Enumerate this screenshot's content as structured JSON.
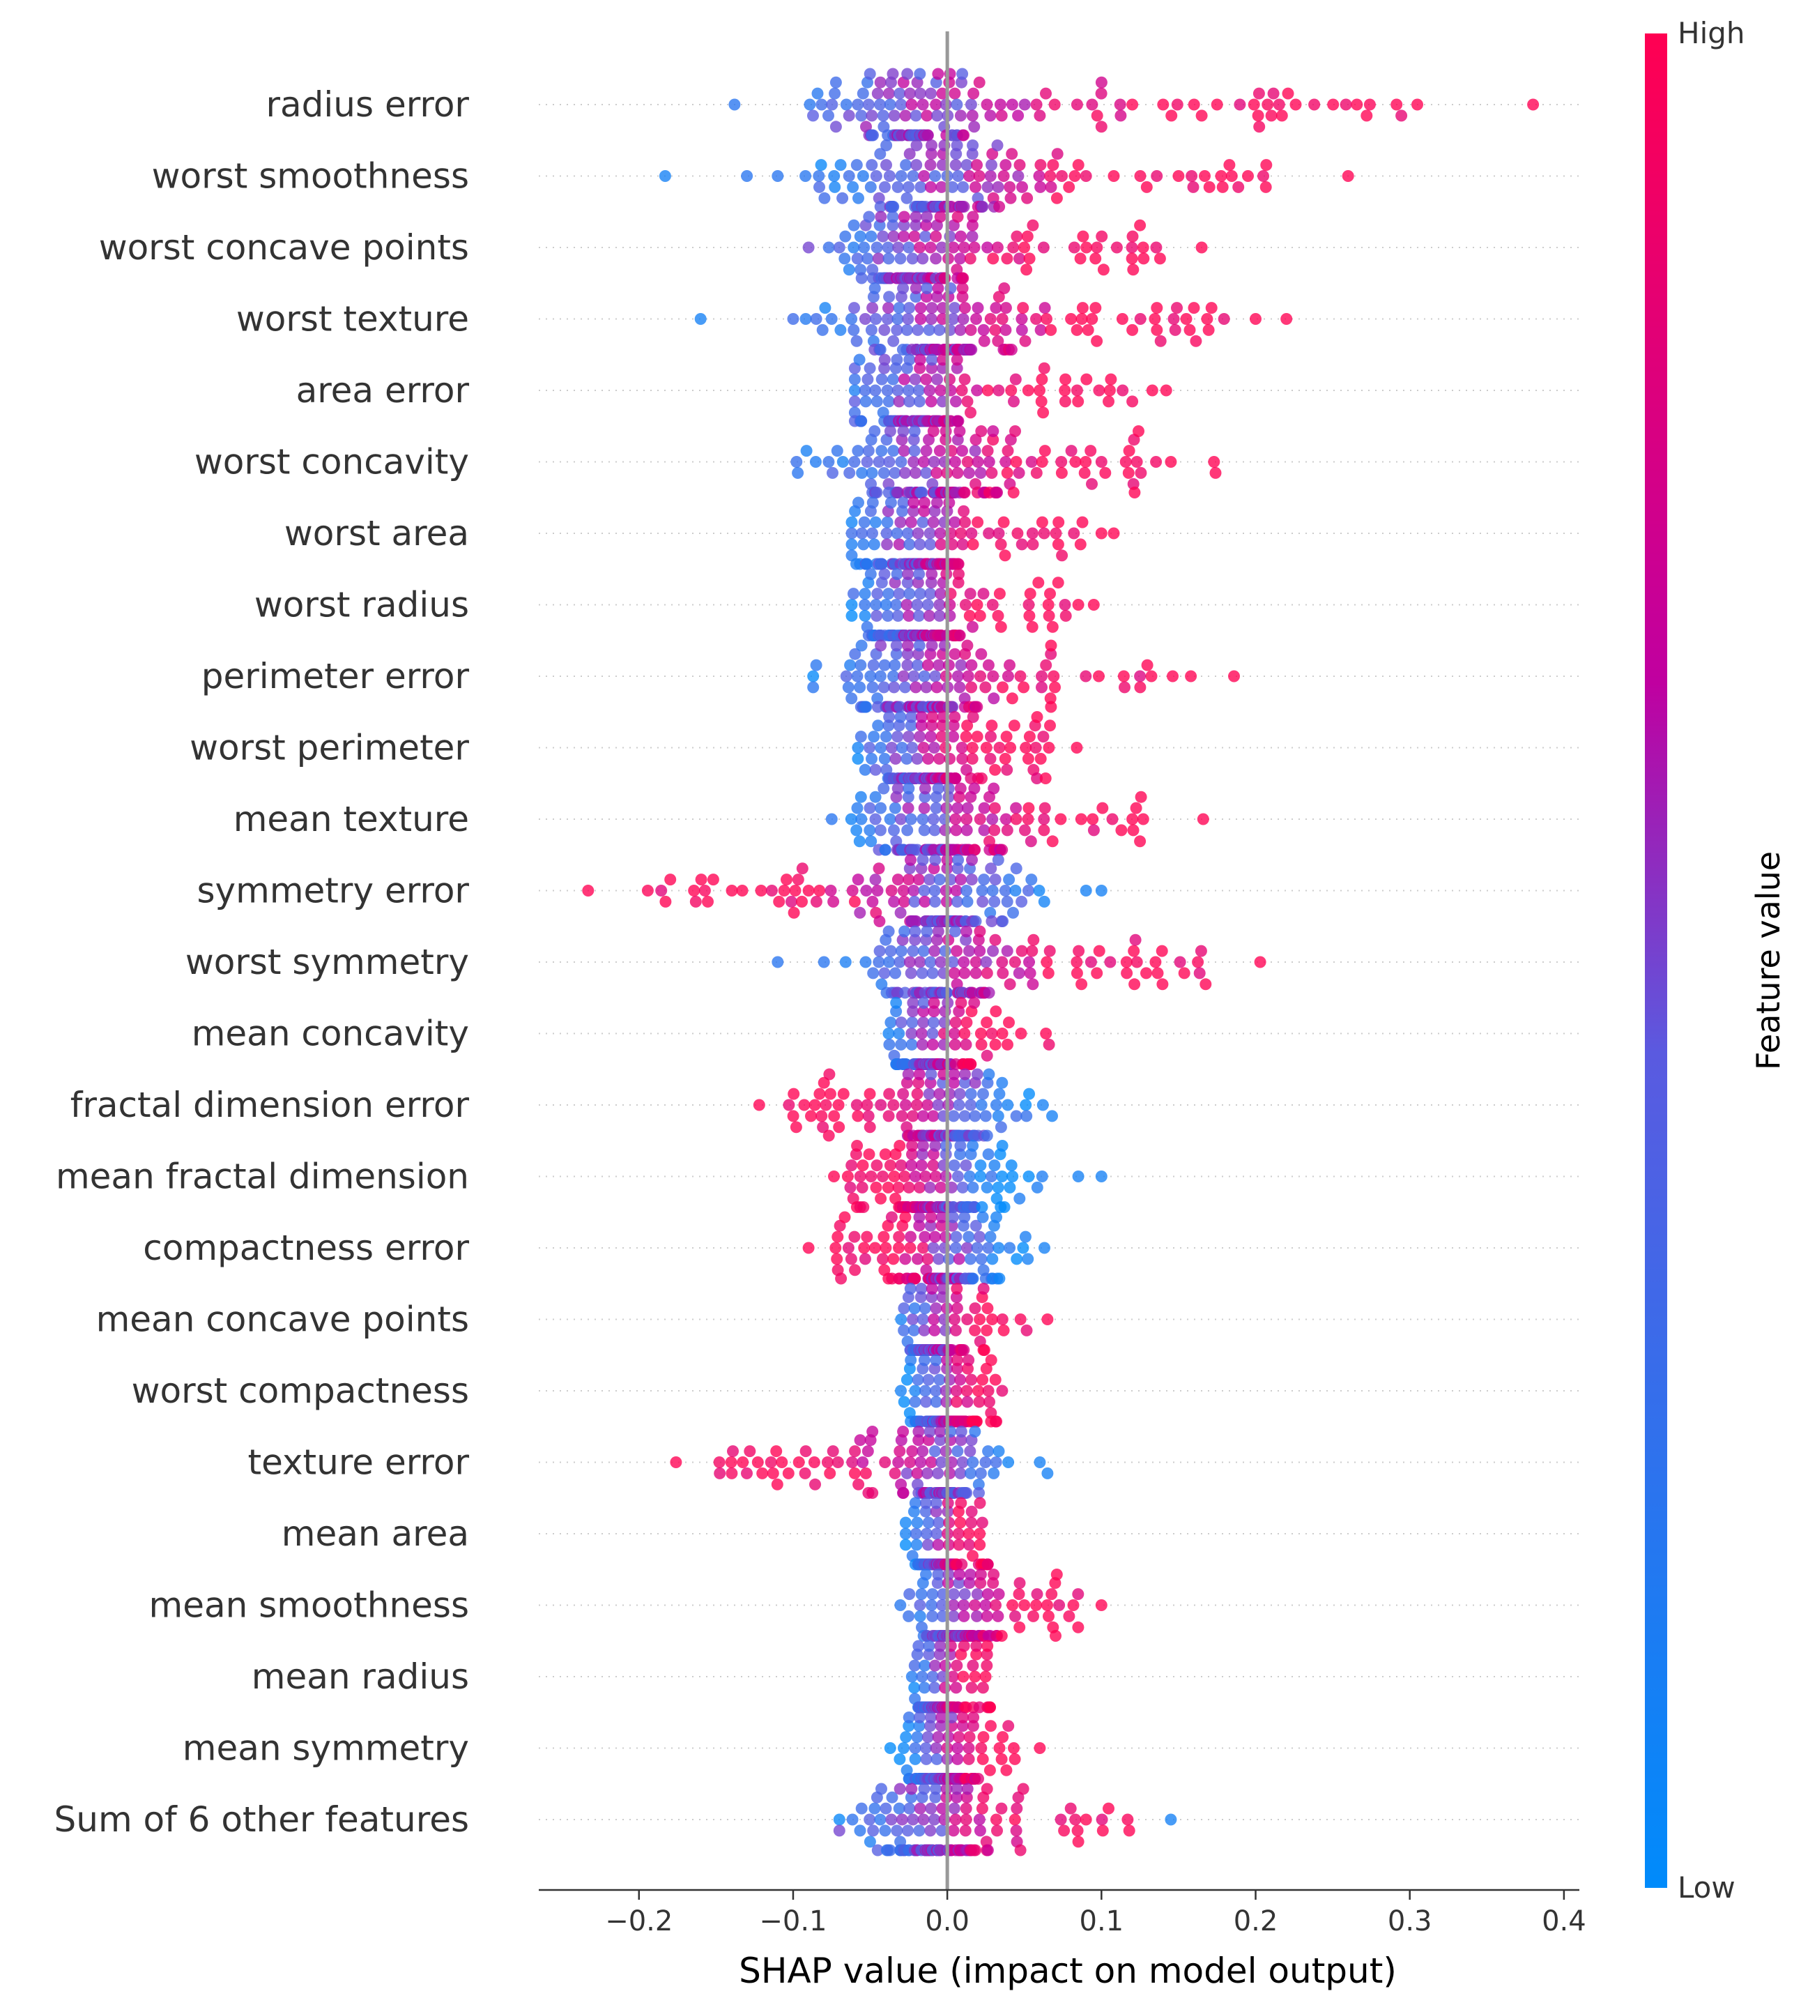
{
  "chart_data": {
    "type": "scatter",
    "subtype": "shap-beeswarm",
    "title": "",
    "xlabel": "SHAP value (impact on model output)",
    "ylabel": "",
    "xlim": [
      -0.265,
      0.41
    ],
    "xticks": [
      -0.2,
      -0.1,
      0.0,
      0.1,
      0.2,
      0.3,
      0.4
    ],
    "xtick_labels": [
      "−0.2",
      "−0.1",
      "0.0",
      "0.1",
      "0.2",
      "0.3",
      "0.4"
    ],
    "zero_line": 0.0,
    "colorbar": {
      "label": "Feature value",
      "high_label": "High",
      "low_label": "Low",
      "high_color": "#ff0052",
      "mid_color": "#c000a0",
      "low_color": "#008bfb"
    },
    "features": [
      {
        "name": "radius error",
        "min": -0.14,
        "max": 0.38,
        "center": -0.025,
        "spread": 0.028,
        "dir": 1,
        "n": 150,
        "outliers": [
          [
            -0.138,
            0.2
          ],
          [
            0.06,
            0.8
          ],
          [
            0.1,
            0.9
          ],
          [
            0.12,
            1.0
          ],
          [
            0.14,
            1.0
          ],
          [
            0.165,
            1.0
          ],
          [
            0.175,
            1.0
          ],
          [
            0.226,
            1.0
          ],
          [
            0.38,
            1.0
          ]
        ]
      },
      {
        "name": "worst smoothness",
        "min": -0.183,
        "max": 0.26,
        "center": -0.01,
        "spread": 0.035,
        "dir": 1,
        "n": 150,
        "outliers": [
          [
            -0.183,
            0.1
          ],
          [
            -0.13,
            0.2
          ],
          [
            -0.11,
            0.2
          ],
          [
            0.09,
            0.9
          ],
          [
            0.15,
            1.0
          ],
          [
            0.17,
            1.0
          ],
          [
            0.183,
            1.0
          ],
          [
            0.195,
            1.0
          ],
          [
            0.26,
            1.0
          ]
        ]
      },
      {
        "name": "worst concave points",
        "min": -0.095,
        "max": 0.165,
        "center": -0.03,
        "spread": 0.022,
        "dir": 1,
        "n": 150,
        "outliers": [
          [
            -0.09,
            0.5
          ],
          [
            -0.07,
            0.4
          ],
          [
            0.11,
            0.9
          ],
          [
            0.125,
            1.0
          ],
          [
            0.138,
            1.0
          ],
          [
            0.165,
            1.0
          ]
        ]
      },
      {
        "name": "worst texture",
        "min": -0.16,
        "max": 0.22,
        "center": -0.02,
        "spread": 0.035,
        "dir": 1,
        "n": 150,
        "outliers": [
          [
            -0.16,
            0.1
          ],
          [
            -0.1,
            0.3
          ],
          [
            -0.085,
            0.3
          ],
          [
            0.12,
            1.0
          ],
          [
            0.155,
            1.0
          ],
          [
            0.16,
            1.0
          ],
          [
            0.2,
            1.0
          ],
          [
            0.22,
            1.0
          ]
        ]
      },
      {
        "name": "area error",
        "min": -0.06,
        "max": 0.145,
        "center": -0.028,
        "spread": 0.02,
        "dir": 1,
        "n": 150,
        "outliers": [
          [
            0.12,
            0.95
          ],
          [
            0.133,
            1.0
          ],
          [
            0.142,
            1.0
          ]
        ]
      },
      {
        "name": "worst concavity",
        "min": -0.098,
        "max": 0.175,
        "center": -0.025,
        "spread": 0.03,
        "dir": 1,
        "n": 150,
        "outliers": [
          [
            -0.097,
            0.2
          ],
          [
            0.1,
            0.9
          ],
          [
            0.118,
            1.0
          ],
          [
            0.145,
            1.0
          ],
          [
            0.173,
            1.0
          ],
          [
            0.174,
            1.0
          ]
        ]
      },
      {
        "name": "worst area",
        "min": -0.062,
        "max": 0.108,
        "center": -0.025,
        "spread": 0.02,
        "dir": 1,
        "n": 150,
        "outliers": [
          [
            0.1,
            1.0
          ],
          [
            0.108,
            1.0
          ]
        ]
      },
      {
        "name": "worst radius",
        "min": -0.062,
        "max": 0.095,
        "center": -0.025,
        "spread": 0.02,
        "dir": 1,
        "n": 150,
        "outliers": [
          [
            0.085,
            1.0
          ],
          [
            0.095,
            1.0
          ]
        ]
      },
      {
        "name": "perimeter error",
        "min": -0.087,
        "max": 0.186,
        "center": -0.025,
        "spread": 0.025,
        "dir": 1,
        "n": 150,
        "outliers": [
          [
            -0.087,
            0.2
          ],
          [
            -0.085,
            0.2
          ],
          [
            0.115,
            0.9
          ],
          [
            0.125,
            0.8
          ],
          [
            0.158,
            1.0
          ],
          [
            0.186,
            1.0
          ]
        ]
      },
      {
        "name": "worst perimeter",
        "min": -0.058,
        "max": 0.085,
        "center": -0.025,
        "spread": 0.02,
        "dir": 1,
        "n": 150,
        "outliers": [
          [
            0.084,
            1.0
          ]
        ]
      },
      {
        "name": "mean texture",
        "min": -0.075,
        "max": 0.166,
        "center": -0.015,
        "spread": 0.025,
        "dir": 1,
        "n": 150,
        "outliers": [
          [
            -0.075,
            0.2
          ],
          [
            0.12,
            1.0
          ],
          [
            0.125,
            1.0
          ],
          [
            0.166,
            1.0
          ]
        ]
      },
      {
        "name": "symmetry error",
        "min": -0.233,
        "max": 0.1,
        "center": 0.0,
        "spread": 0.025,
        "dir": -1,
        "n": 150,
        "outliers": [
          [
            -0.233,
            1.0
          ],
          [
            -0.133,
            1.0
          ],
          [
            -0.09,
            1.0
          ],
          [
            -0.06,
            1.0
          ],
          [
            0.09,
            0.1
          ],
          [
            0.1,
            0.1
          ]
        ]
      },
      {
        "name": "worst symmetry",
        "min": -0.11,
        "max": 0.203,
        "center": -0.01,
        "spread": 0.02,
        "dir": 1,
        "n": 150,
        "outliers": [
          [
            -0.11,
            0.2
          ],
          [
            -0.08,
            0.2
          ],
          [
            0.055,
            0.9
          ],
          [
            0.087,
            1.0
          ],
          [
            0.203,
            1.0
          ]
        ]
      },
      {
        "name": "mean concavity",
        "min": -0.04,
        "max": 0.066,
        "center": -0.015,
        "spread": 0.01,
        "dir": 1,
        "n": 150,
        "outliers": [
          [
            0.064,
            1.0
          ],
          [
            0.066,
            0.9
          ]
        ]
      },
      {
        "name": "fractal dimension error",
        "min": -0.122,
        "max": 0.068,
        "center": 0.005,
        "spread": 0.02,
        "dir": -1,
        "n": 150,
        "outliers": [
          [
            -0.122,
            1.0
          ],
          [
            -0.098,
            1.0
          ],
          [
            -0.08,
            1.0
          ],
          [
            0.062,
            0.1
          ],
          [
            0.068,
            0.1
          ]
        ]
      },
      {
        "name": "mean fractal dimension",
        "min": -0.075,
        "max": 0.1,
        "center": 0.0,
        "spread": 0.025,
        "dir": -1,
        "n": 150,
        "outliers": [
          [
            0.085,
            0.1
          ],
          [
            0.1,
            0.1
          ]
        ]
      },
      {
        "name": "compactness error",
        "min": -0.09,
        "max": 0.063,
        "center": 0.005,
        "spread": 0.02,
        "dir": -1,
        "n": 150,
        "outliers": [
          [
            -0.09,
            1.0
          ],
          [
            0.063,
            0.1
          ]
        ]
      },
      {
        "name": "mean concave points",
        "min": -0.03,
        "max": 0.065,
        "center": -0.012,
        "spread": 0.008,
        "dir": 1,
        "n": 150,
        "outliers": [
          [
            0.065,
            1.0
          ]
        ]
      },
      {
        "name": "worst compactness",
        "min": -0.035,
        "max": 0.043,
        "center": -0.005,
        "spread": 0.012,
        "dir": 1,
        "n": 150,
        "outliers": []
      },
      {
        "name": "texture error",
        "min": -0.176,
        "max": 0.065,
        "center": -0.002,
        "spread": 0.015,
        "dir": -1,
        "n": 150,
        "outliers": [
          [
            -0.176,
            1.0
          ],
          [
            -0.06,
            1.0
          ],
          [
            0.06,
            0.1
          ],
          [
            0.065,
            0.1
          ]
        ]
      },
      {
        "name": "mean area",
        "min": -0.027,
        "max": 0.033,
        "center": -0.008,
        "spread": 0.008,
        "dir": 1,
        "n": 150,
        "outliers": []
      },
      {
        "name": "mean smoothness",
        "min": -0.037,
        "max": 0.1,
        "center": 0.0,
        "spread": 0.012,
        "dir": 1,
        "n": 150,
        "outliers": [
          [
            0.1,
            1.0
          ]
        ]
      },
      {
        "name": "mean radius",
        "min": -0.023,
        "max": 0.035,
        "center": -0.008,
        "spread": 0.006,
        "dir": 1,
        "n": 150,
        "outliers": []
      },
      {
        "name": "mean symmetry",
        "min": -0.037,
        "max": 0.06,
        "center": -0.005,
        "spread": 0.012,
        "dir": 1,
        "n": 150,
        "outliers": [
          [
            0.06,
            1.0
          ]
        ]
      },
      {
        "name": "Sum of 6 other features",
        "min": -0.07,
        "max": 0.145,
        "center": -0.015,
        "spread": 0.02,
        "dir": 1,
        "n": 150,
        "outliers": [
          [
            -0.07,
            0.5
          ],
          [
            0.085,
            1.0
          ],
          [
            0.09,
            1.0
          ],
          [
            0.145,
            0.1
          ]
        ]
      }
    ]
  }
}
